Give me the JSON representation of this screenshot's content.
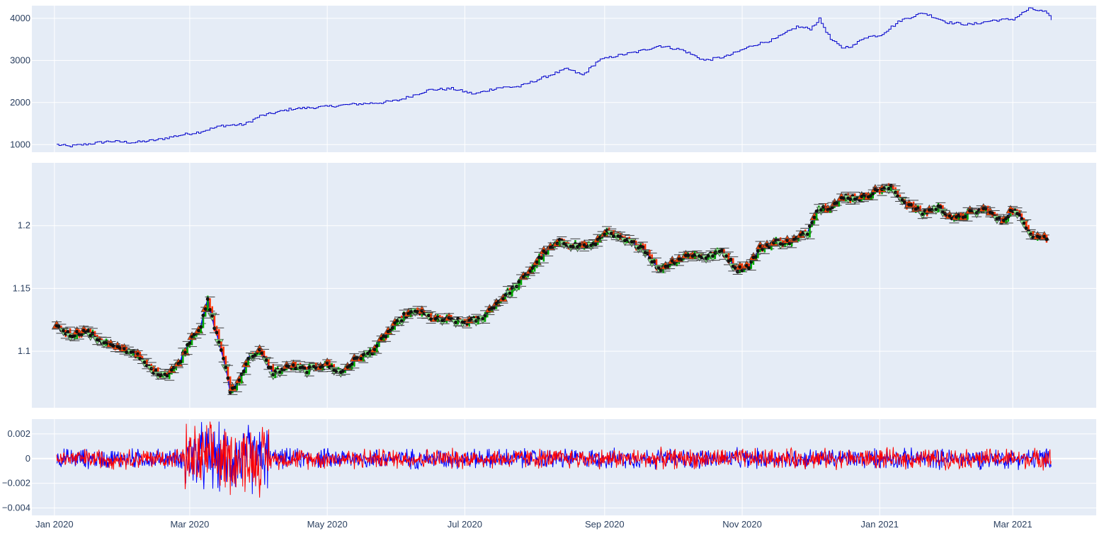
{
  "chart_data": {
    "type": "line",
    "colors": {
      "plot_bg": "#E5ECF6",
      "grid": "#ffffff",
      "tick_text": "#2a3f5f",
      "equity": "#0000CC",
      "price_up": "#00AA00",
      "price_down": "#FF3300",
      "price_line": "#0000FF",
      "bar": "#404040",
      "marker_up": "#FF4500",
      "marker_down": "#90EE90",
      "dot": "#111111",
      "diff_a": "#0000FF",
      "diff_b": "#FF0000"
    },
    "x_range": [
      "2019-12-22",
      "2021-04-07"
    ],
    "x_ticks": [
      {
        "date": "2020-01-01",
        "label": "Jan 2020"
      },
      {
        "date": "2020-03-01",
        "label": "Mar 2020"
      },
      {
        "date": "2020-05-01",
        "label": "May 2020"
      },
      {
        "date": "2020-07-01",
        "label": "Jul 2020"
      },
      {
        "date": "2020-09-01",
        "label": "Sep 2020"
      },
      {
        "date": "2020-11-01",
        "label": "Nov 2020"
      },
      {
        "date": "2021-01-01",
        "label": "Jan 2021"
      },
      {
        "date": "2021-03-01",
        "label": "Mar 2021"
      }
    ],
    "panels": [
      {
        "name": "equity",
        "ylim": [
          820,
          4300
        ],
        "y_ticks": [
          {
            "value": 1000,
            "label": "1000"
          },
          {
            "value": 2000,
            "label": "2000"
          },
          {
            "value": 3000,
            "label": "3000"
          },
          {
            "value": 4000,
            "label": "4000"
          }
        ],
        "series": [
          {
            "style": "step",
            "x": [
              "2020-01-02",
              "2020-01-07",
              "2020-01-15",
              "2020-01-25",
              "2020-02-05",
              "2020-02-15",
              "2020-02-25",
              "2020-03-05",
              "2020-03-15",
              "2020-03-25",
              "2020-04-01",
              "2020-04-15",
              "2020-04-30",
              "2020-05-10",
              "2020-05-25",
              "2020-06-01",
              "2020-06-15",
              "2020-06-25",
              "2020-07-05",
              "2020-07-15",
              "2020-07-25",
              "2020-08-05",
              "2020-08-15",
              "2020-08-22",
              "2020-08-29",
              "2020-09-05",
              "2020-09-15",
              "2020-09-25",
              "2020-10-05",
              "2020-10-15",
              "2020-10-20",
              "2020-10-25",
              "2020-11-05",
              "2020-11-15",
              "2020-11-25",
              "2020-12-01",
              "2020-12-05",
              "2020-12-10",
              "2020-12-15",
              "2020-12-20",
              "2020-12-25",
              "2021-01-01",
              "2021-01-10",
              "2021-01-20",
              "2021-01-31",
              "2021-02-10",
              "2021-02-20",
              "2021-03-01",
              "2021-03-08",
              "2021-03-15",
              "2021-03-18"
            ],
            "y": [
              1000,
              960,
              1010,
              1080,
              1050,
              1110,
              1220,
              1300,
              1450,
              1480,
              1680,
              1850,
              1900,
              1950,
              2000,
              2050,
              2300,
              2330,
              2200,
              2350,
              2380,
              2600,
              2800,
              2650,
              3000,
              3100,
              3200,
              3350,
              3250,
              3000,
              3050,
              3100,
              3350,
              3500,
              3800,
              3750,
              3980,
              3500,
              3300,
              3350,
              3550,
              3600,
              3950,
              4130,
              3900,
              3850,
              3950,
              3980,
              4230,
              4150,
              3980
            ]
          }
        ]
      },
      {
        "name": "price",
        "ylim": [
          1.055,
          1.25
        ],
        "y_ticks": [
          {
            "value": 1.1,
            "label": "1.1"
          },
          {
            "value": 1.15,
            "label": "1.15"
          },
          {
            "value": 1.2,
            "label": "1.2"
          }
        ],
        "series": [
          {
            "style": "ohlc_markers",
            "x": [
              "2020-01-02",
              "2020-01-08",
              "2020-01-15",
              "2020-01-22",
              "2020-01-29",
              "2020-02-05",
              "2020-02-10",
              "2020-02-15",
              "2020-02-20",
              "2020-02-25",
              "2020-03-02",
              "2020-03-06",
              "2020-03-09",
              "2020-03-12",
              "2020-03-16",
              "2020-03-19",
              "2020-03-23",
              "2020-03-27",
              "2020-04-01",
              "2020-04-07",
              "2020-04-15",
              "2020-04-22",
              "2020-04-30",
              "2020-05-07",
              "2020-05-14",
              "2020-05-21",
              "2020-05-28",
              "2020-06-04",
              "2020-06-10",
              "2020-06-18",
              "2020-06-25",
              "2020-07-01",
              "2020-07-08",
              "2020-07-15",
              "2020-07-21",
              "2020-07-28",
              "2020-08-05",
              "2020-08-12",
              "2020-08-20",
              "2020-08-27",
              "2020-09-01",
              "2020-09-10",
              "2020-09-18",
              "2020-09-25",
              "2020-10-02",
              "2020-10-09",
              "2020-10-16",
              "2020-10-23",
              "2020-10-30",
              "2020-11-04",
              "2020-11-09",
              "2020-11-16",
              "2020-11-23",
              "2020-11-30",
              "2020-12-04",
              "2020-12-10",
              "2020-12-17",
              "2020-12-24",
              "2021-01-01",
              "2021-01-06",
              "2021-01-13",
              "2021-01-20",
              "2021-01-27",
              "2021-02-03",
              "2021-02-10",
              "2021-02-17",
              "2021-02-24",
              "2021-03-01",
              "2021-03-05",
              "2021-03-10",
              "2021-03-16"
            ],
            "y": [
              1.12,
              1.113,
              1.116,
              1.108,
              1.102,
              1.1,
              1.09,
              1.083,
              1.082,
              1.09,
              1.112,
              1.12,
              1.14,
              1.12,
              1.095,
              1.068,
              1.077,
              1.095,
              1.1,
              1.083,
              1.088,
              1.085,
              1.09,
              1.083,
              1.094,
              1.1,
              1.115,
              1.128,
              1.132,
              1.125,
              1.125,
              1.123,
              1.126,
              1.138,
              1.148,
              1.16,
              1.178,
              1.187,
              1.184,
              1.184,
              1.195,
              1.188,
              1.183,
              1.165,
              1.172,
              1.177,
              1.175,
              1.18,
              1.165,
              1.168,
              1.182,
              1.187,
              1.187,
              1.195,
              1.213,
              1.215,
              1.223,
              1.222,
              1.229,
              1.23,
              1.217,
              1.21,
              1.215,
              1.205,
              1.21,
              1.213,
              1.203,
              1.213,
              1.205,
              1.192,
              1.19
            ]
          }
        ]
      },
      {
        "name": "diff",
        "ylim": [
          -0.0046,
          0.0032
        ],
        "y_ticks": [
          {
            "value": -0.004,
            "label": "−0.004"
          },
          {
            "value": -0.002,
            "label": "−0.002"
          },
          {
            "value": 0,
            "label": "0"
          },
          {
            "value": 0.002,
            "label": "0.002"
          }
        ],
        "series": [
          {
            "style": "noise",
            "x_start": "2020-01-02",
            "x_end": "2021-03-18",
            "amplitude_normal": 0.0007,
            "amplitude_volatile": 0.0024,
            "volatile_period": [
              "2020-02-28",
              "2020-04-05"
            ],
            "min_value": -0.0045,
            "max_value": 0.003
          }
        ]
      }
    ]
  }
}
